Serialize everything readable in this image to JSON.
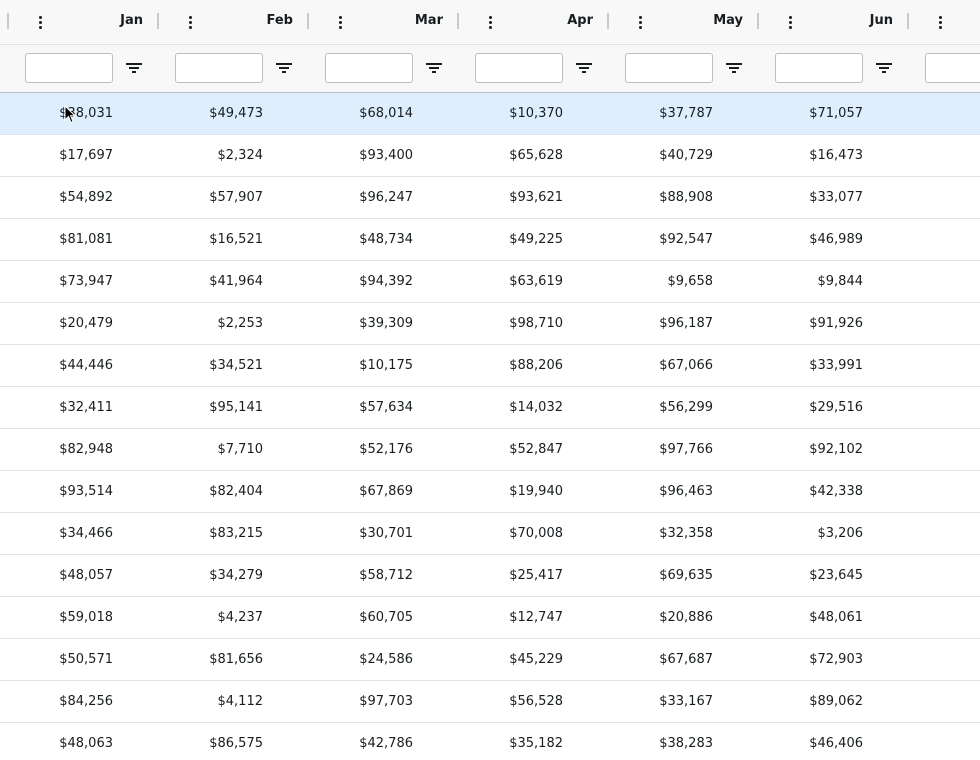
{
  "columns": [
    {
      "label": "Jan"
    },
    {
      "label": "Feb"
    },
    {
      "label": "Mar"
    },
    {
      "label": "Apr"
    },
    {
      "label": "May"
    },
    {
      "label": "Jun"
    },
    {
      "label": ""
    }
  ],
  "filters": [
    "",
    "",
    "",
    "",
    "",
    "",
    ""
  ],
  "selected_row": 0,
  "rows": [
    [
      "$38,031",
      "$49,473",
      "$68,014",
      "$10,370",
      "$37,787",
      "$71,057"
    ],
    [
      "$17,697",
      "$2,324",
      "$93,400",
      "$65,628",
      "$40,729",
      "$16,473"
    ],
    [
      "$54,892",
      "$57,907",
      "$96,247",
      "$93,621",
      "$88,908",
      "$33,077"
    ],
    [
      "$81,081",
      "$16,521",
      "$48,734",
      "$49,225",
      "$92,547",
      "$46,989"
    ],
    [
      "$73,947",
      "$41,964",
      "$94,392",
      "$63,619",
      "$9,658",
      "$9,844"
    ],
    [
      "$20,479",
      "$2,253",
      "$39,309",
      "$98,710",
      "$96,187",
      "$91,926"
    ],
    [
      "$44,446",
      "$34,521",
      "$10,175",
      "$88,206",
      "$67,066",
      "$33,991"
    ],
    [
      "$32,411",
      "$95,141",
      "$57,634",
      "$14,032",
      "$56,299",
      "$29,516"
    ],
    [
      "$82,948",
      "$7,710",
      "$52,176",
      "$52,847",
      "$97,766",
      "$92,102"
    ],
    [
      "$93,514",
      "$82,404",
      "$67,869",
      "$19,940",
      "$96,463",
      "$42,338"
    ],
    [
      "$34,466",
      "$83,215",
      "$30,701",
      "$70,008",
      "$32,358",
      "$3,206"
    ],
    [
      "$48,057",
      "$34,279",
      "$58,712",
      "$25,417",
      "$69,635",
      "$23,645"
    ],
    [
      "$59,018",
      "$4,237",
      "$60,705",
      "$12,747",
      "$20,886",
      "$48,061"
    ],
    [
      "$50,571",
      "$81,656",
      "$24,586",
      "$45,229",
      "$67,687",
      "$72,903"
    ],
    [
      "$84,256",
      "$4,112",
      "$97,703",
      "$56,528",
      "$33,167",
      "$89,062"
    ],
    [
      "$48,063",
      "$86,575",
      "$42,786",
      "$35,182",
      "$38,283",
      "$46,406"
    ]
  ],
  "colors": {
    "header_bg": "#f8f8f8",
    "selected_row_bg": "#deeefc",
    "border": "#dde2eb",
    "text": "#181d1f"
  },
  "icons": {
    "column_menu": "vertical-ellipsis-icon",
    "filter": "filter-icon"
  }
}
